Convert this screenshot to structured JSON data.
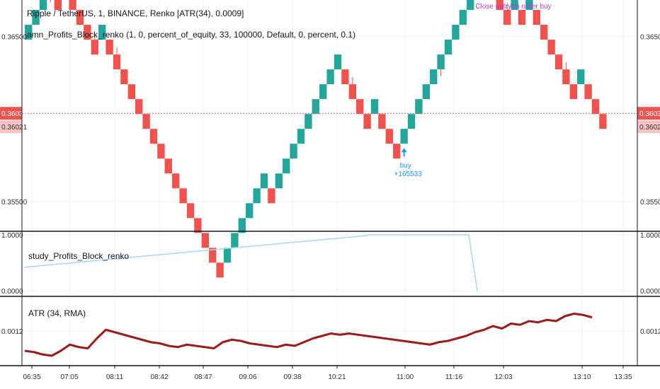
{
  "header": {
    "symbol_line": "Ripple / TetherUS, 1, BINANCE, Renko [ATR(34), 0.0009]",
    "strategy_line": "amn_Profits_Block_renko (1, 0, percent_of_equity, 33, 100000, Default, 0, percent, 0.1)"
  },
  "colors": {
    "up": "#26a69a",
    "down": "#ef5350",
    "wick": "#ef5350",
    "equity_line": "#a8d8ea",
    "atr_line": "#9b1c1c",
    "buy_marker": "#2196f3",
    "close_marker": "#b83bd6",
    "price_line": "#ef5350"
  },
  "x_axis": {
    "ticks": [
      "06:35",
      "07:05",
      "08:11",
      "08:42",
      "08:47",
      "09:06",
      "09:38",
      "10:21",
      "11:00",
      "11:16",
      "12:03",
      "13:10",
      "13:35"
    ]
  },
  "chart_data": [
    {
      "type": "renko",
      "pane": "price",
      "ylim": [
        0.3532,
        0.3672
      ],
      "y_ticks": [
        0.355,
        0.365
      ],
      "y_tick_labels": [
        "0.35500",
        "0.36500"
      ],
      "brick_size": 0.0009,
      "start_price": 0.3648,
      "directions": [
        1,
        1,
        1,
        1,
        -1,
        1,
        -1,
        -1,
        -1,
        -1,
        1,
        -1,
        -1,
        -1,
        -1,
        -1,
        -1,
        -1,
        -1,
        -1,
        -1,
        -1,
        -1,
        -1,
        -1,
        -1,
        -1,
        1,
        1,
        1,
        1,
        1,
        1,
        -1,
        1,
        1,
        1,
        1,
        1,
        1,
        1,
        1,
        1,
        -1,
        -1,
        -1,
        -1,
        1,
        -1,
        -1,
        -1,
        1,
        1,
        1,
        1,
        1,
        1,
        1,
        1,
        1,
        1,
        1,
        1,
        -1,
        -1,
        -1,
        1,
        -1,
        1,
        -1,
        -1,
        -1,
        -1,
        -1,
        -1,
        1,
        -1,
        -1,
        -1
      ],
      "current_price": 0.36034,
      "current_price_label": "0.36034",
      "second_price_label": "0.36021",
      "trades": [
        {
          "label": "buy",
          "sub_label": "+165533"
        },
        {
          "label": "Close entry(s) order buy"
        }
      ]
    },
    {
      "type": "line",
      "pane": "equity",
      "legend": "study_Profits_Block_renko",
      "ylim": [
        0,
        1
      ],
      "y_tick_labels": [
        "0.0000",
        "1.0000"
      ],
      "y_values": [
        0.42,
        0.445,
        0.47,
        0.495,
        0.52,
        0.545,
        0.57,
        0.595,
        0.62,
        0.645,
        0.67,
        0.695,
        0.72,
        0.745,
        0.77,
        0.795,
        0.82,
        0.845,
        0.87,
        0.895,
        0.92,
        0.945,
        0.97,
        1.0,
        1.0,
        1.0,
        1.0,
        1.0,
        1.0,
        1.0,
        0.0
      ]
    },
    {
      "type": "line",
      "pane": "atr",
      "legend": "ATR (34, RMA)",
      "ylim": [
        0.00092,
        0.00148
      ],
      "y_ticks": [
        0.0012
      ],
      "y_tick_labels": [
        "0.0012"
      ],
      "y_values": [
        0.00104,
        0.00103,
        0.00101,
        0.001,
        0.00104,
        0.00109,
        0.00107,
        0.00106,
        0.00114,
        0.00121,
        0.00119,
        0.00117,
        0.00115,
        0.00113,
        0.00111,
        0.0011,
        0.00108,
        0.00107,
        0.00109,
        0.00108,
        0.00107,
        0.00106,
        0.00111,
        0.00113,
        0.00112,
        0.0011,
        0.00109,
        0.00108,
        0.00107,
        0.00109,
        0.00108,
        0.00111,
        0.00114,
        0.00116,
        0.00118,
        0.00117,
        0.00118,
        0.00117,
        0.00116,
        0.00115,
        0.00114,
        0.00113,
        0.00112,
        0.00111,
        0.0011,
        0.00109,
        0.00111,
        0.00112,
        0.00114,
        0.00116,
        0.00119,
        0.00121,
        0.00124,
        0.00122,
        0.00126,
        0.00125,
        0.00128,
        0.00127,
        0.00129,
        0.00128,
        0.00132,
        0.00134,
        0.00133,
        0.00131
      ]
    }
  ]
}
